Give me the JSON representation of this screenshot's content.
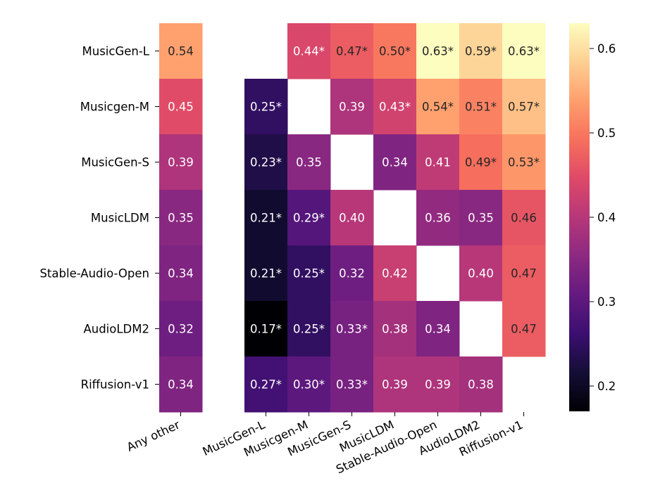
{
  "chart_data": {
    "type": "heatmap",
    "rows": [
      "MusicGen-L",
      "Musicgen-M",
      "MusicGen-S",
      "MusicLDM",
      "Stable-Audio-Open",
      "AudioLDM2",
      "Riffusion-v1"
    ],
    "columns": [
      "Any other",
      "MusicGen-L",
      "Musicgen-M",
      "MusicGen-S",
      "MusicLDM",
      "Stable-Audio-Open",
      "AudioLDM2",
      "Riffusion-v1"
    ],
    "values": [
      [
        0.54,
        null,
        0.44,
        0.47,
        0.5,
        0.63,
        0.59,
        0.63
      ],
      [
        0.45,
        0.25,
        null,
        0.39,
        0.43,
        0.54,
        0.51,
        0.57
      ],
      [
        0.39,
        0.23,
        0.35,
        null,
        0.34,
        0.41,
        0.49,
        0.53
      ],
      [
        0.35,
        0.21,
        0.29,
        0.4,
        null,
        0.36,
        0.35,
        0.46
      ],
      [
        0.34,
        0.21,
        0.25,
        0.32,
        0.42,
        null,
        0.4,
        0.47
      ],
      [
        0.32,
        0.17,
        0.25,
        0.33,
        0.38,
        0.34,
        null,
        0.47
      ],
      [
        0.34,
        0.27,
        0.3,
        0.33,
        0.39,
        0.39,
        0.38,
        null
      ]
    ],
    "significant": [
      [
        false,
        false,
        true,
        true,
        true,
        true,
        true,
        true
      ],
      [
        false,
        true,
        false,
        false,
        true,
        true,
        true,
        true
      ],
      [
        false,
        true,
        false,
        false,
        false,
        false,
        true,
        true
      ],
      [
        false,
        true,
        true,
        false,
        false,
        false,
        false,
        false
      ],
      [
        false,
        true,
        true,
        false,
        false,
        false,
        false,
        false
      ],
      [
        false,
        true,
        true,
        true,
        false,
        false,
        false,
        false
      ],
      [
        false,
        true,
        true,
        true,
        false,
        false,
        false,
        false
      ]
    ],
    "labels": [
      [
        "0.54",
        "",
        "0.44*",
        "0.47*",
        "0.50*",
        "0.63*",
        "0.59*",
        "0.63*"
      ],
      [
        "0.45",
        "0.25*",
        "",
        "0.39",
        "0.43*",
        "0.54*",
        "0.51*",
        "0.57*"
      ],
      [
        "0.39",
        "0.23*",
        "0.35",
        "",
        "0.34",
        "0.41",
        "0.49*",
        "0.53*"
      ],
      [
        "0.35",
        "0.21*",
        "0.29*",
        "0.40",
        "",
        "0.36",
        "0.35",
        "0.46"
      ],
      [
        "0.34",
        "0.21*",
        "0.25*",
        "0.32",
        "0.42",
        "",
        "0.40",
        "0.47"
      ],
      [
        "0.32",
        "0.17*",
        "0.25*",
        "0.33*",
        "0.38",
        "0.34",
        "",
        "0.47"
      ],
      [
        "0.34",
        "0.27*",
        "0.30*",
        "0.33*",
        "0.39",
        "0.39",
        "0.38",
        ""
      ]
    ],
    "colormap": "magma",
    "colorbar": {
      "range": [
        0.17,
        0.63
      ],
      "ticks": [
        0.2,
        0.3,
        0.4,
        0.5,
        0.6
      ],
      "tick_labels": [
        "0.2",
        "0.3",
        "0.4",
        "0.5",
        "0.6"
      ]
    },
    "title": "",
    "xlabel": "",
    "ylabel": ""
  }
}
